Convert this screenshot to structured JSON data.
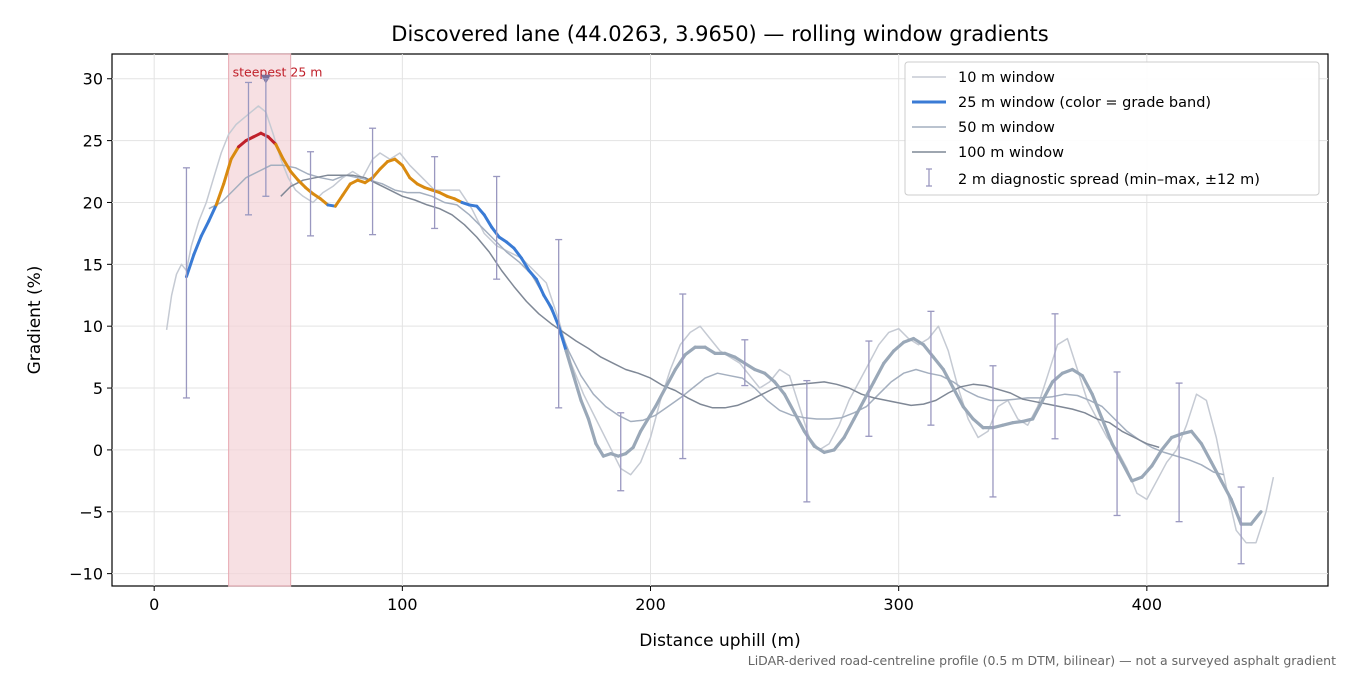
{
  "chart_data": {
    "type": "line",
    "title": "Discovered lane (44.0263, 3.9650) — rolling window gradients",
    "xlabel": "Distance uphill (m)",
    "ylabel": "Gradient (%)",
    "xlim": [
      -17,
      473
    ],
    "ylim": [
      -11,
      32
    ],
    "x_ticks": [
      0,
      100,
      200,
      300,
      400
    ],
    "y_ticks": [
      -10,
      -5,
      0,
      5,
      10,
      15,
      20,
      25,
      30
    ],
    "y_tick_labels": [
      "−10",
      "−5",
      "0",
      "5",
      "10",
      "15",
      "20",
      "25",
      "30"
    ],
    "grid": true,
    "legend_position": "top-right",
    "footnote": "LiDAR-derived road-centreline profile (0.5 m DTM, bilinear) — not a surveyed asphalt gradient",
    "highlight": {
      "x_start": 30,
      "x_end": 55,
      "label": "steepest 25 m",
      "peak_x": 45,
      "peak_y": 30
    },
    "colors": {
      "band_blue": "#3a7bd5",
      "band_orange": "#d98a10",
      "band_red": "#c0202a",
      "muted": "#9aa8b8",
      "highlight_fill": "#f3d3d7"
    },
    "series": [
      {
        "name": "10 m window",
        "x": [
          5,
          7,
          9,
          11,
          13,
          15,
          18,
          21,
          24,
          27,
          30,
          33,
          36,
          39,
          42,
          45,
          48,
          51,
          54,
          57,
          60,
          64,
          68,
          72,
          76,
          80,
          84,
          88,
          91,
          95,
          99,
          103,
          108,
          113,
          118,
          123,
          128,
          133,
          138,
          143,
          148,
          153,
          158,
          163,
          168,
          173,
          178,
          183,
          188,
          192,
          196,
          200,
          204,
          208,
          212,
          216,
          220,
          224,
          228,
          232,
          236,
          240,
          244,
          248,
          252,
          256,
          260,
          264,
          268,
          272,
          276,
          280,
          284,
          288,
          292,
          296,
          300,
          304,
          308,
          312,
          316,
          320,
          324,
          328,
          332,
          336,
          340,
          344,
          348,
          352,
          356,
          360,
          364,
          368,
          372,
          376,
          380,
          384,
          388,
          392,
          396,
          400,
          404,
          408,
          412,
          416,
          420,
          424,
          428,
          432,
          436,
          440,
          444,
          448,
          451
        ],
        "values": [
          9.7,
          12.5,
          14.2,
          15.0,
          14.5,
          16.5,
          18.5,
          20.0,
          22.0,
          24.0,
          25.5,
          26.3,
          26.8,
          27.3,
          27.8,
          27.3,
          25.5,
          23.5,
          22.0,
          21.0,
          20.5,
          20.0,
          20.8,
          21.3,
          22.0,
          22.5,
          22.0,
          23.5,
          24.0,
          23.5,
          24.0,
          23.0,
          22.0,
          21.0,
          21.0,
          21.0,
          19.5,
          17.5,
          16.5,
          16.0,
          15.5,
          14.5,
          13.5,
          10.5,
          7.0,
          4.5,
          2.5,
          0.5,
          -1.5,
          -2.0,
          -1.0,
          1.0,
          4.0,
          6.5,
          8.5,
          9.5,
          10.0,
          9.0,
          8.0,
          7.5,
          7.0,
          6.0,
          5.0,
          5.5,
          6.5,
          6.0,
          3.5,
          1.0,
          0.0,
          0.5,
          2.0,
          4.0,
          5.5,
          7.0,
          8.5,
          9.5,
          9.8,
          9.0,
          8.5,
          9.0,
          10.0,
          8.0,
          5.0,
          2.5,
          1.0,
          1.5,
          3.5,
          4.0,
          2.5,
          2.0,
          3.5,
          6.0,
          8.5,
          9.0,
          6.5,
          4.0,
          2.5,
          1.0,
          0.0,
          -1.5,
          -3.5,
          -4.0,
          -2.5,
          -1.0,
          0.0,
          2.0,
          4.5,
          4.0,
          1.0,
          -3.0,
          -6.5,
          -7.5,
          -7.5,
          -5.0,
          -2.2
        ]
      },
      {
        "name": "25 m window (color = grade band)",
        "x": [
          13,
          16,
          19,
          22,
          25,
          28,
          31,
          34,
          37,
          40,
          43,
          46,
          49,
          52,
          55,
          58,
          61,
          64,
          67,
          70,
          73,
          76,
          79,
          82,
          85,
          88,
          91,
          94,
          97,
          100,
          103,
          106,
          109,
          112,
          115,
          118,
          121,
          124,
          127,
          130,
          133,
          136,
          139,
          142,
          145,
          148,
          151,
          154,
          157,
          160,
          163,
          166,
          169,
          172,
          175,
          178,
          181,
          184,
          187,
          190,
          193,
          196,
          199,
          202,
          206,
          210,
          214,
          218,
          222,
          226,
          230,
          234,
          238,
          242,
          246,
          250,
          254,
          258,
          262,
          266,
          270,
          274,
          278,
          282,
          286,
          290,
          294,
          298,
          302,
          306,
          310,
          314,
          318,
          322,
          326,
          330,
          334,
          338,
          342,
          346,
          350,
          354,
          358,
          362,
          366,
          370,
          374,
          378,
          382,
          386,
          390,
          394,
          398,
          402,
          406,
          410,
          414,
          418,
          422,
          426,
          430,
          434,
          438,
          442,
          446
        ],
        "values": [
          14.0,
          15.8,
          17.3,
          18.5,
          19.8,
          21.5,
          23.5,
          24.5,
          25.0,
          25.3,
          25.6,
          25.3,
          24.7,
          23.5,
          22.5,
          21.8,
          21.2,
          20.7,
          20.3,
          19.8,
          19.7,
          20.6,
          21.5,
          21.8,
          21.6,
          22.0,
          22.7,
          23.3,
          23.5,
          23.0,
          22.0,
          21.5,
          21.2,
          21.0,
          20.8,
          20.5,
          20.3,
          20.0,
          19.8,
          19.7,
          19.0,
          18.0,
          17.2,
          16.8,
          16.3,
          15.5,
          14.5,
          13.8,
          12.5,
          11.5,
          10.0,
          8.0,
          6.0,
          4.0,
          2.5,
          0.5,
          -0.5,
          -0.3,
          -0.5,
          -0.3,
          0.2,
          1.5,
          2.5,
          3.5,
          5.0,
          6.5,
          7.7,
          8.3,
          8.3,
          7.8,
          7.8,
          7.5,
          7.0,
          6.5,
          6.2,
          5.5,
          4.5,
          3.0,
          1.5,
          0.3,
          -0.2,
          0.0,
          1.0,
          2.5,
          4.0,
          5.5,
          7.0,
          8.0,
          8.7,
          9.0,
          8.5,
          7.5,
          6.5,
          5.0,
          3.5,
          2.5,
          1.8,
          1.8,
          2.0,
          2.2,
          2.3,
          2.5,
          4.0,
          5.5,
          6.2,
          6.5,
          6.0,
          4.5,
          2.5,
          0.5,
          -1.0,
          -2.5,
          -2.2,
          -1.3,
          0.0,
          1.0,
          1.3,
          1.5,
          0.5,
          -1.0,
          -2.5,
          -4.0,
          -6.0,
          -6.0,
          -5.0
        ]
      },
      {
        "name": "50 m window",
        "x": [
          22,
          27,
          32,
          37,
          42,
          47,
          52,
          57,
          62,
          67,
          72,
          77,
          82,
          87,
          92,
          97,
          102,
          107,
          112,
          117,
          122,
          127,
          132,
          137,
          142,
          147,
          152,
          157,
          162,
          167,
          172,
          177,
          182,
          187,
          192,
          197,
          202,
          207,
          212,
          217,
          222,
          227,
          232,
          237,
          242,
          247,
          252,
          257,
          262,
          267,
          272,
          277,
          282,
          287,
          292,
          297,
          302,
          307,
          312,
          317,
          322,
          327,
          332,
          337,
          342,
          347,
          352,
          357,
          362,
          367,
          372,
          377,
          382,
          387,
          392,
          397,
          402,
          407,
          412,
          417,
          422,
          427,
          431
        ],
        "values": [
          19.5,
          20.0,
          21.0,
          22.0,
          22.5,
          23.0,
          23.0,
          22.8,
          22.3,
          22.0,
          21.8,
          22.2,
          22.0,
          21.8,
          21.5,
          21.0,
          20.8,
          20.8,
          20.5,
          20.0,
          19.8,
          19.0,
          18.0,
          17.0,
          16.0,
          15.2,
          14.2,
          12.5,
          10.5,
          8.0,
          6.0,
          4.5,
          3.5,
          2.8,
          2.3,
          2.4,
          2.8,
          3.5,
          4.2,
          5.0,
          5.8,
          6.2,
          6.0,
          5.8,
          5.0,
          4.0,
          3.2,
          2.8,
          2.6,
          2.5,
          2.5,
          2.6,
          3.0,
          3.5,
          4.5,
          5.5,
          6.2,
          6.5,
          6.2,
          6.0,
          5.5,
          4.8,
          4.3,
          4.0,
          4.0,
          4.1,
          4.2,
          4.2,
          4.3,
          4.5,
          4.4,
          4.0,
          3.5,
          2.5,
          1.5,
          0.8,
          0.2,
          -0.2,
          -0.5,
          -0.8,
          -1.2,
          -1.8,
          -2.0
        ]
      },
      {
        "name": "100 m window",
        "x": [
          51,
          55,
          60,
          65,
          70,
          75,
          80,
          85,
          90,
          95,
          100,
          105,
          110,
          115,
          120,
          125,
          130,
          135,
          140,
          145,
          150,
          155,
          160,
          165,
          170,
          175,
          180,
          185,
          190,
          195,
          200,
          205,
          210,
          215,
          220,
          225,
          230,
          235,
          240,
          245,
          250,
          255,
          260,
          265,
          270,
          275,
          280,
          285,
          290,
          295,
          300,
          305,
          310,
          315,
          320,
          325,
          330,
          335,
          340,
          345,
          350,
          355,
          360,
          365,
          370,
          375,
          380,
          385,
          390,
          395,
          400,
          405
        ],
        "values": [
          20.5,
          21.3,
          21.8,
          22.0,
          22.2,
          22.2,
          22.2,
          22.0,
          21.5,
          21.0,
          20.5,
          20.2,
          19.8,
          19.5,
          19.0,
          18.2,
          17.2,
          16.0,
          14.5,
          13.2,
          12.0,
          11.0,
          10.2,
          9.5,
          8.8,
          8.2,
          7.5,
          7.0,
          6.5,
          6.2,
          5.8,
          5.2,
          4.8,
          4.2,
          3.7,
          3.4,
          3.4,
          3.6,
          4.0,
          4.5,
          5.0,
          5.2,
          5.3,
          5.4,
          5.5,
          5.3,
          5.0,
          4.5,
          4.2,
          4.0,
          3.8,
          3.6,
          3.7,
          4.0,
          4.6,
          5.1,
          5.3,
          5.2,
          4.9,
          4.6,
          4.1,
          3.9,
          3.7,
          3.5,
          3.3,
          3.0,
          2.5,
          2.2,
          1.5,
          1.0,
          0.5,
          0.2
        ]
      }
    ],
    "error_bars": {
      "name": "2 m diagnostic spread (min–max, ±12 m)",
      "x": [
        13,
        38,
        45,
        63,
        88,
        113,
        138,
        163,
        188,
        213,
        238,
        263,
        288,
        313,
        338,
        363,
        388,
        413,
        438
      ],
      "low": [
        4.2,
        19.0,
        20.5,
        17.3,
        17.4,
        17.9,
        13.8,
        3.4,
        -3.3,
        -0.7,
        5.2,
        -4.2,
        1.1,
        2.0,
        -3.8,
        0.9,
        -5.3,
        -5.8,
        -9.2
      ],
      "high": [
        22.8,
        29.7,
        30.0,
        24.1,
        26.0,
        23.7,
        22.1,
        17.0,
        3.0,
        12.6,
        8.9,
        5.6,
        8.8,
        11.2,
        6.8,
        11.0,
        6.3,
        5.4,
        -3.0
      ]
    },
    "legend": [
      "10 m window",
      "25 m window (color = grade band)",
      "50 m window",
      "100 m window",
      "2 m diagnostic spread (min–max, ±12 m)"
    ]
  }
}
